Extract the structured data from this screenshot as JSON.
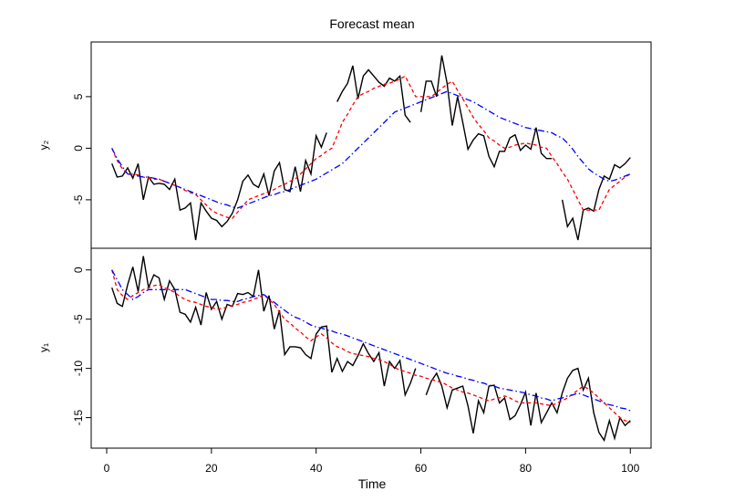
{
  "chart_data": [
    {
      "type": "line",
      "title": "Forecast mean",
      "ylabel": "y₂",
      "x": [
        1,
        2,
        3,
        4,
        5,
        6,
        7,
        8,
        9,
        10,
        11,
        12,
        13,
        14,
        15,
        16,
        17,
        18,
        19,
        20,
        21,
        22,
        23,
        24,
        25,
        26,
        27,
        28,
        29,
        30,
        31,
        32,
        33,
        34,
        35,
        36,
        37,
        38,
        39,
        40,
        41,
        42,
        43,
        44,
        45,
        46,
        47,
        48,
        49,
        50,
        51,
        52,
        53,
        54,
        55,
        56,
        57,
        58,
        59,
        60,
        61,
        62,
        63,
        64,
        65,
        66,
        67,
        68,
        69,
        70,
        71,
        72,
        73,
        74,
        75,
        76,
        77,
        78,
        79,
        80,
        81,
        82,
        83,
        84,
        85,
        86,
        87,
        88,
        89,
        90,
        91,
        92,
        93,
        94,
        95,
        96,
        97,
        98,
        99,
        100
      ],
      "xlim": [
        -2.96,
        103.96
      ],
      "ylim": [
        -9.7,
        10.3
      ],
      "yticks": [
        -5,
        0,
        5
      ],
      "series": [
        {
          "color": "#000000",
          "linestyle": "solid",
          "values": [
            -1.5,
            -2.8,
            -2.7,
            -1.9,
            -2.9,
            -1.5,
            -5,
            -2.8,
            -3.5,
            -3.4,
            -3.5,
            -4,
            -3,
            -6,
            -5.8,
            -5.3,
            -8.9,
            -5.3,
            -6.1,
            -6.8,
            -7,
            -7.6,
            -7.1,
            -6.3,
            -5,
            -3.2,
            -2.6,
            -3.5,
            -3.8,
            -2.5,
            -4.6,
            -2.2,
            -1.4,
            -4,
            -4.2,
            -1.8,
            -4.2,
            -1.2,
            -2.5,
            1.2,
            0.1,
            1.5,
            null,
            4.5,
            5.5,
            6.3,
            8,
            4.8,
            7,
            7.6,
            7,
            6.4,
            6,
            6.8,
            6.5,
            7,
            3.2,
            2.5,
            null,
            3.5,
            6.5,
            6.5,
            5,
            9,
            6.3,
            2.2,
            5,
            2.5,
            -0.1,
            0.8,
            1.4,
            1.2,
            -0.8,
            -1.8,
            -0.3,
            -0.3,
            1,
            1.3,
            -0.2,
            0.3,
            -0.1,
            2,
            -0.5,
            -1,
            -1,
            null,
            -5,
            -7.6,
            -6.8,
            -8.9,
            -6,
            -5.8,
            -6.1,
            -4,
            -2.7,
            -3,
            -1.6,
            -1.9,
            -1.5,
            -0.9
          ]
        },
        {
          "color": "#ff0000",
          "linestyle": "dashed",
          "values": [
            0,
            -1.2,
            -2,
            -2.5,
            -2.5,
            -2.6,
            -2.8,
            -2.9,
            -3,
            -3,
            -3.2,
            -3.4,
            -3.6,
            -3.8,
            -4.1,
            -4.3,
            -4.5,
            -5,
            -5.5,
            -6,
            -6.3,
            -6.5,
            -6.7,
            -6.8,
            -6.2,
            -5.6,
            -5,
            -4.8,
            -4.6,
            -4.4,
            -4.2,
            -4,
            -3.7,
            -3.5,
            -3.2,
            -3,
            -2.5,
            -2,
            -1.5,
            -1,
            -0.7,
            -0.3,
            0,
            1.2,
            2.5,
            3.3,
            4.2,
            5,
            5.3,
            5.5,
            5.8,
            6,
            6.2,
            6.3,
            6.5,
            6.7,
            7,
            6,
            5,
            5,
            5,
            5,
            5.4,
            5.8,
            6.2,
            6.5,
            5.6,
            4.8,
            3.9,
            3,
            2.3,
            1.7,
            1,
            0.7,
            0.3,
            0,
            0.1,
            0.3,
            0.4,
            0.5,
            0.4,
            0.3,
            0.1,
            0,
            -0.8,
            -1.5,
            -2.3,
            -3,
            -4,
            -5,
            -6,
            -6,
            -6,
            -6,
            -5,
            -4,
            -3.6,
            -3.2,
            -2.8,
            -2.5
          ]
        },
        {
          "color": "#0000ff",
          "linestyle": "dotdash",
          "values": [
            0,
            -1,
            -1.8,
            -2.5,
            -2.6,
            -2.7,
            -2.8,
            -2.8,
            -2.9,
            -3,
            -3.2,
            -3.4,
            -3.6,
            -3.8,
            -4,
            -4.2,
            -4.4,
            -4.6,
            -4.8,
            -5,
            -5.2,
            -5.4,
            -5.5,
            -5.7,
            -5.8,
            -5.6,
            -5.4,
            -5.2,
            -5,
            -4.8,
            -4.6,
            -4.5,
            -4.3,
            -4.2,
            -4,
            -3.8,
            -3.6,
            -3.4,
            -3.2,
            -3,
            -2.7,
            -2.4,
            -2.1,
            -1.8,
            -1.5,
            -1,
            -0.5,
            0,
            0.5,
            1,
            1.5,
            2,
            2.5,
            3,
            3.5,
            3.7,
            3.9,
            4.1,
            4.3,
            4.5,
            4.7,
            4.9,
            5.1,
            5.3,
            5.5,
            5.3,
            5.1,
            4.9,
            4.7,
            4.5,
            4.2,
            3.9,
            3.6,
            3.3,
            3,
            2.8,
            2.6,
            2.4,
            2.2,
            2,
            1.9,
            1.8,
            1.7,
            1.6,
            1.5,
            1.2,
            1,
            0.5,
            -0.1,
            -0.8,
            -1.4,
            -2,
            -2.4,
            -2.7,
            -3,
            -3.2,
            -3.1,
            -2.9,
            -2.7,
            -2.5
          ]
        }
      ]
    },
    {
      "type": "line",
      "ylabel": "y₁",
      "xlabel": "Time",
      "x": [
        1,
        2,
        3,
        4,
        5,
        6,
        7,
        8,
        9,
        10,
        11,
        12,
        13,
        14,
        15,
        16,
        17,
        18,
        19,
        20,
        21,
        22,
        23,
        24,
        25,
        26,
        27,
        28,
        29,
        30,
        31,
        32,
        33,
        34,
        35,
        36,
        37,
        38,
        39,
        40,
        41,
        42,
        43,
        44,
        45,
        46,
        47,
        48,
        49,
        50,
        51,
        52,
        53,
        54,
        55,
        56,
        57,
        58,
        59,
        60,
        61,
        62,
        63,
        64,
        65,
        66,
        67,
        68,
        69,
        70,
        71,
        72,
        73,
        74,
        75,
        76,
        77,
        78,
        79,
        80,
        81,
        82,
        83,
        84,
        85,
        86,
        87,
        88,
        89,
        90,
        91,
        92,
        93,
        94,
        95,
        96,
        97,
        98,
        99,
        100
      ],
      "xlim": [
        -2.96,
        103.96
      ],
      "xticks": [
        0,
        20,
        40,
        60,
        80,
        100
      ],
      "ylim": [
        -18.1,
        2.2
      ],
      "yticks": [
        -15,
        -10,
        -5,
        0
      ],
      "series": [
        {
          "color": "#000000",
          "linestyle": "solid",
          "values": [
            -1.8,
            -3.4,
            -3.7,
            -1.5,
            0.3,
            -2.2,
            1.4,
            -1.8,
            -0.5,
            -0.8,
            -3,
            -1.1,
            -2,
            -4.3,
            -4.5,
            -5.3,
            -3.8,
            -5.6,
            -2.3,
            -4,
            -3.2,
            -5,
            -3.5,
            -3.7,
            -2.4,
            -2.5,
            -2.3,
            -2.7,
            0,
            -4.2,
            -2.6,
            -6,
            -4.1,
            -8.6,
            -7.8,
            -7.8,
            -7.9,
            -8.6,
            -9,
            -6.5,
            -5.8,
            -5.7,
            -10.4,
            -9,
            -10.3,
            -9.3,
            -9.7,
            -8.7,
            -7.5,
            -8.5,
            -9.3,
            -8.4,
            -11.8,
            -9.3,
            -10,
            -9.2,
            -12.7,
            -11.5,
            -10,
            null,
            -12.7,
            -11.3,
            -10.5,
            -11.8,
            -14,
            -12.2,
            -12,
            -11.8,
            -13.8,
            -16.6,
            -13.3,
            -14.5,
            -11.8,
            -11.7,
            -13.5,
            -13,
            -15.2,
            -14.8,
            -13.7,
            -12.4,
            -15.8,
            -12.5,
            -15.5,
            -14.5,
            -13.5,
            -14.5,
            -12.5,
            -11,
            -10.2,
            -10,
            -12.2,
            -11,
            -14.5,
            -16.5,
            -17.3,
            -15.3,
            -17.1,
            -15,
            -15.8,
            -15.3
          ]
        },
        {
          "color": "#ff0000",
          "linestyle": "dashed",
          "values": [
            0,
            -2,
            -2.6,
            -3,
            -2.6,
            -2.3,
            -2,
            -1.8,
            -1.6,
            -1.5,
            -1.8,
            -2,
            -2.3,
            -2.7,
            -3,
            -3.2,
            -3.3,
            -3.5,
            -3.7,
            -3.8,
            -4,
            -3.9,
            -3.8,
            -3.6,
            -3.5,
            -3.3,
            -3.2,
            -3,
            -2.8,
            -2.5,
            -3,
            -3.5,
            -4.3,
            -5,
            -5.4,
            -5.9,
            -6.3,
            -6.8,
            -7.2,
            -6.8,
            -6.5,
            -6.9,
            -7.4,
            -7.8,
            -8,
            -8.3,
            -8.5,
            -8.6,
            -8.7,
            -8.8,
            -9,
            -9.1,
            -9.3,
            -9.6,
            -9.9,
            -10.2,
            -10.3,
            -10.5,
            -10.7,
            -10.8,
            -11,
            -11.1,
            -11.3,
            -11.4,
            -11.7,
            -12,
            -12.2,
            -12.4,
            -12.5,
            -12.7,
            -12.9,
            -13.1,
            -13.3,
            -13.1,
            -13,
            -12.8,
            -13,
            -13.3,
            -13.5,
            -13.5,
            -13.5,
            -13.5,
            -13.6,
            -13.7,
            -13.8,
            -13.5,
            -13.3,
            -13,
            -12.6,
            -12.2,
            -11.8,
            -12.1,
            -12.5,
            -13,
            -13.5,
            -14,
            -14.5,
            -15,
            -15.3,
            -15.5
          ]
        },
        {
          "color": "#0000ff",
          "linestyle": "dotdash",
          "values": [
            0,
            -1,
            -2,
            -2.5,
            -3,
            -2.7,
            -2.3,
            -2,
            -2,
            -2,
            -2,
            -2,
            -2,
            -2,
            -2,
            -2.2,
            -2.4,
            -2.6,
            -2.8,
            -3,
            -3,
            -3.1,
            -3.1,
            -3.2,
            -3.2,
            -3,
            -2.9,
            -2.7,
            -2.6,
            -2.5,
            -2.9,
            -3.3,
            -3.7,
            -4.1,
            -4.5,
            -4.8,
            -5,
            -5.3,
            -5.6,
            -5.8,
            -5.9,
            -6.1,
            -6.2,
            -6.4,
            -6.5,
            -6.7,
            -6.9,
            -7.1,
            -7.3,
            -7.5,
            -7.7,
            -7.9,
            -8.1,
            -8.3,
            -8.5,
            -8.7,
            -8.9,
            -9.1,
            -9.3,
            -9.5,
            -9.7,
            -9.9,
            -10.1,
            -10.3,
            -10.5,
            -10.6,
            -10.8,
            -10.9,
            -11.1,
            -11.2,
            -11.4,
            -11.5,
            -11.7,
            -11.8,
            -12,
            -12.1,
            -12.2,
            -12.3,
            -12.4,
            -12.5,
            -12.7,
            -12.8,
            -13,
            -13.1,
            -13.3,
            -13.1,
            -13,
            -12.8,
            -12.7,
            -12.5,
            -12.7,
            -12.9,
            -13.1,
            -13.3,
            -13.5,
            -13.7,
            -13.8,
            -14,
            -14.1,
            -14.3
          ]
        }
      ]
    }
  ]
}
